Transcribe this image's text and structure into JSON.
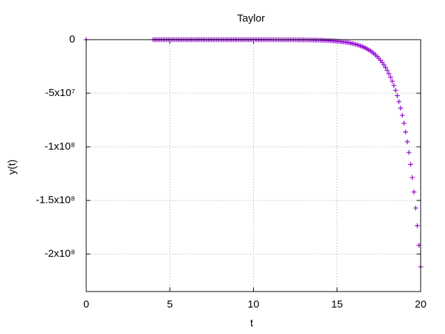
{
  "chart_data": {
    "type": "scatter",
    "title": "Taylor",
    "x_label": "t",
    "y_label": "y(t)",
    "color": "#9400d3",
    "grid": true,
    "xlim": [
      0,
      20
    ],
    "xticks": [
      0,
      5,
      10,
      15,
      20
    ],
    "ylim": [
      -235000000,
      0
    ],
    "yticks": [
      0,
      {
        "value": -50000000,
        "label": "-5x10⁷"
      },
      {
        "value": -100000000,
        "label": "-1x10⁸"
      },
      {
        "value": -150000000,
        "label": "-1.5x10⁸"
      },
      {
        "value": -200000000,
        "label": "-2x10⁸"
      }
    ],
    "x": [
      0,
      4,
      4.1,
      4.2,
      4.3,
      4.4,
      4.5,
      4.6,
      4.7,
      4.8,
      4.9,
      5,
      5.1,
      5.2,
      5.3,
      5.4,
      5.5,
      5.6,
      5.7,
      5.8,
      5.9,
      6,
      6.1,
      6.2,
      6.3,
      6.4,
      6.5,
      6.6,
      6.7,
      6.8,
      6.9,
      7,
      7.1,
      7.2,
      7.3,
      7.4,
      7.5,
      7.6,
      7.7,
      7.8,
      7.9,
      8,
      8.1,
      8.2,
      8.3,
      8.4,
      8.5,
      8.6,
      8.7,
      8.8,
      8.9,
      9,
      9.1,
      9.2,
      9.3,
      9.4,
      9.5,
      9.6,
      9.7,
      9.8,
      9.9,
      10,
      10.1,
      10.2,
      10.3,
      10.4,
      10.5,
      10.6,
      10.7,
      10.8,
      10.9,
      11,
      11.1,
      11.2,
      11.3,
      11.4,
      11.5,
      11.6,
      11.7,
      11.8,
      11.9,
      12,
      12.1,
      12.2,
      12.3,
      12.4,
      12.5,
      12.6,
      12.7,
      12.8,
      12.9,
      13,
      13.1,
      13.2,
      13.3,
      13.4,
      13.5,
      13.6,
      13.7,
      13.8,
      13.9,
      14,
      14.1,
      14.2,
      14.3,
      14.4,
      14.5,
      14.6,
      14.7,
      14.8,
      14.9,
      15,
      15.1,
      15.2,
      15.3,
      15.4,
      15.5,
      15.6,
      15.7,
      15.8,
      15.9,
      16,
      16.1,
      16.2,
      16.3,
      16.4,
      16.5,
      16.6,
      16.7,
      16.8,
      16.9,
      17,
      17.1,
      17.2,
      17.3,
      17.4,
      17.5,
      17.6,
      17.7,
      17.8,
      17.9,
      18,
      18.1,
      18.2,
      18.3,
      18.4,
      18.5,
      18.6,
      18.7,
      18.8,
      18.9,
      19,
      19.1,
      19.2,
      19.3,
      19.4,
      19.5,
      19.6,
      19.7,
      19.8,
      19.9,
      20
    ],
    "values": [
      0,
      -23.9,
      -26.4,
      -29.1,
      -32.2,
      -35.6,
      -39.3,
      -43.5,
      -48,
      -53.1,
      -58.7,
      -64.9,
      -71.7,
      -79.2,
      -87.5,
      -96.7,
      -107,
      -118,
      -131,
      -144,
      -160,
      -176,
      -195,
      -215,
      -238,
      -263,
      -291,
      -321,
      -355,
      -392,
      -434,
      -479,
      -530,
      -585,
      -647,
      -715,
      -790,
      -873,
      -965,
      -1067,
      -1179,
      -1303,
      -1440,
      -1591,
      -1758,
      -1943,
      -2148,
      -2373,
      -2623,
      -2899,
      -3204,
      -3541,
      -3913,
      -4325,
      -4780,
      -5282,
      -5838,
      -6452,
      -7131,
      -7881,
      -8709,
      -9625,
      -10640,
      -11760,
      -12990,
      -14360,
      -15870,
      -17540,
      -19380,
      -21420,
      -23670,
      -26160,
      -28910,
      -31960,
      -35320,
      -39030,
      -43140,
      -47670,
      -52690,
      -58230,
      -64350,
      -71120,
      -78600,
      -86900,
      -96000,
      -106100,
      -117300,
      -129600,
      -143200,
      -158300,
      -174900,
      -193300,
      -213600,
      -236100,
      -261000,
      -288400,
      -318700,
      -352300,
      -389300,
      -430300,
      -475500,
      -525500,
      -580700,
      -641900,
      -709400,
      -784000,
      -866400,
      -957500,
      -1058300,
      -1169600,
      -1292500,
      -1428000,
      -1579000,
      -1745000,
      -1928000,
      -2131000,
      -2355000,
      -2603000,
      -2877000,
      -3179000,
      -3513000,
      -3883000,
      -4291000,
      -4743000,
      -5242000,
      -5793000,
      -6402000,
      -7075000,
      -7820000,
      -8642000,
      -9551000,
      -10555000,
      -11660000,
      -12890000,
      -14250000,
      -15750000,
      -17400000,
      -19230000,
      -21260000,
      -23490000,
      -25960000,
      -28690000,
      -31710000,
      -35040000,
      -38730000,
      -42800000,
      -47310000,
      -52280000,
      -57780000,
      -63860000,
      -70570000,
      -77990000,
      -86190000,
      -95260000,
      -105280000,
      -116350000,
      -128590000,
      -142110000,
      -157060000,
      -173580000,
      -191830000,
      -212000000
    ]
  }
}
